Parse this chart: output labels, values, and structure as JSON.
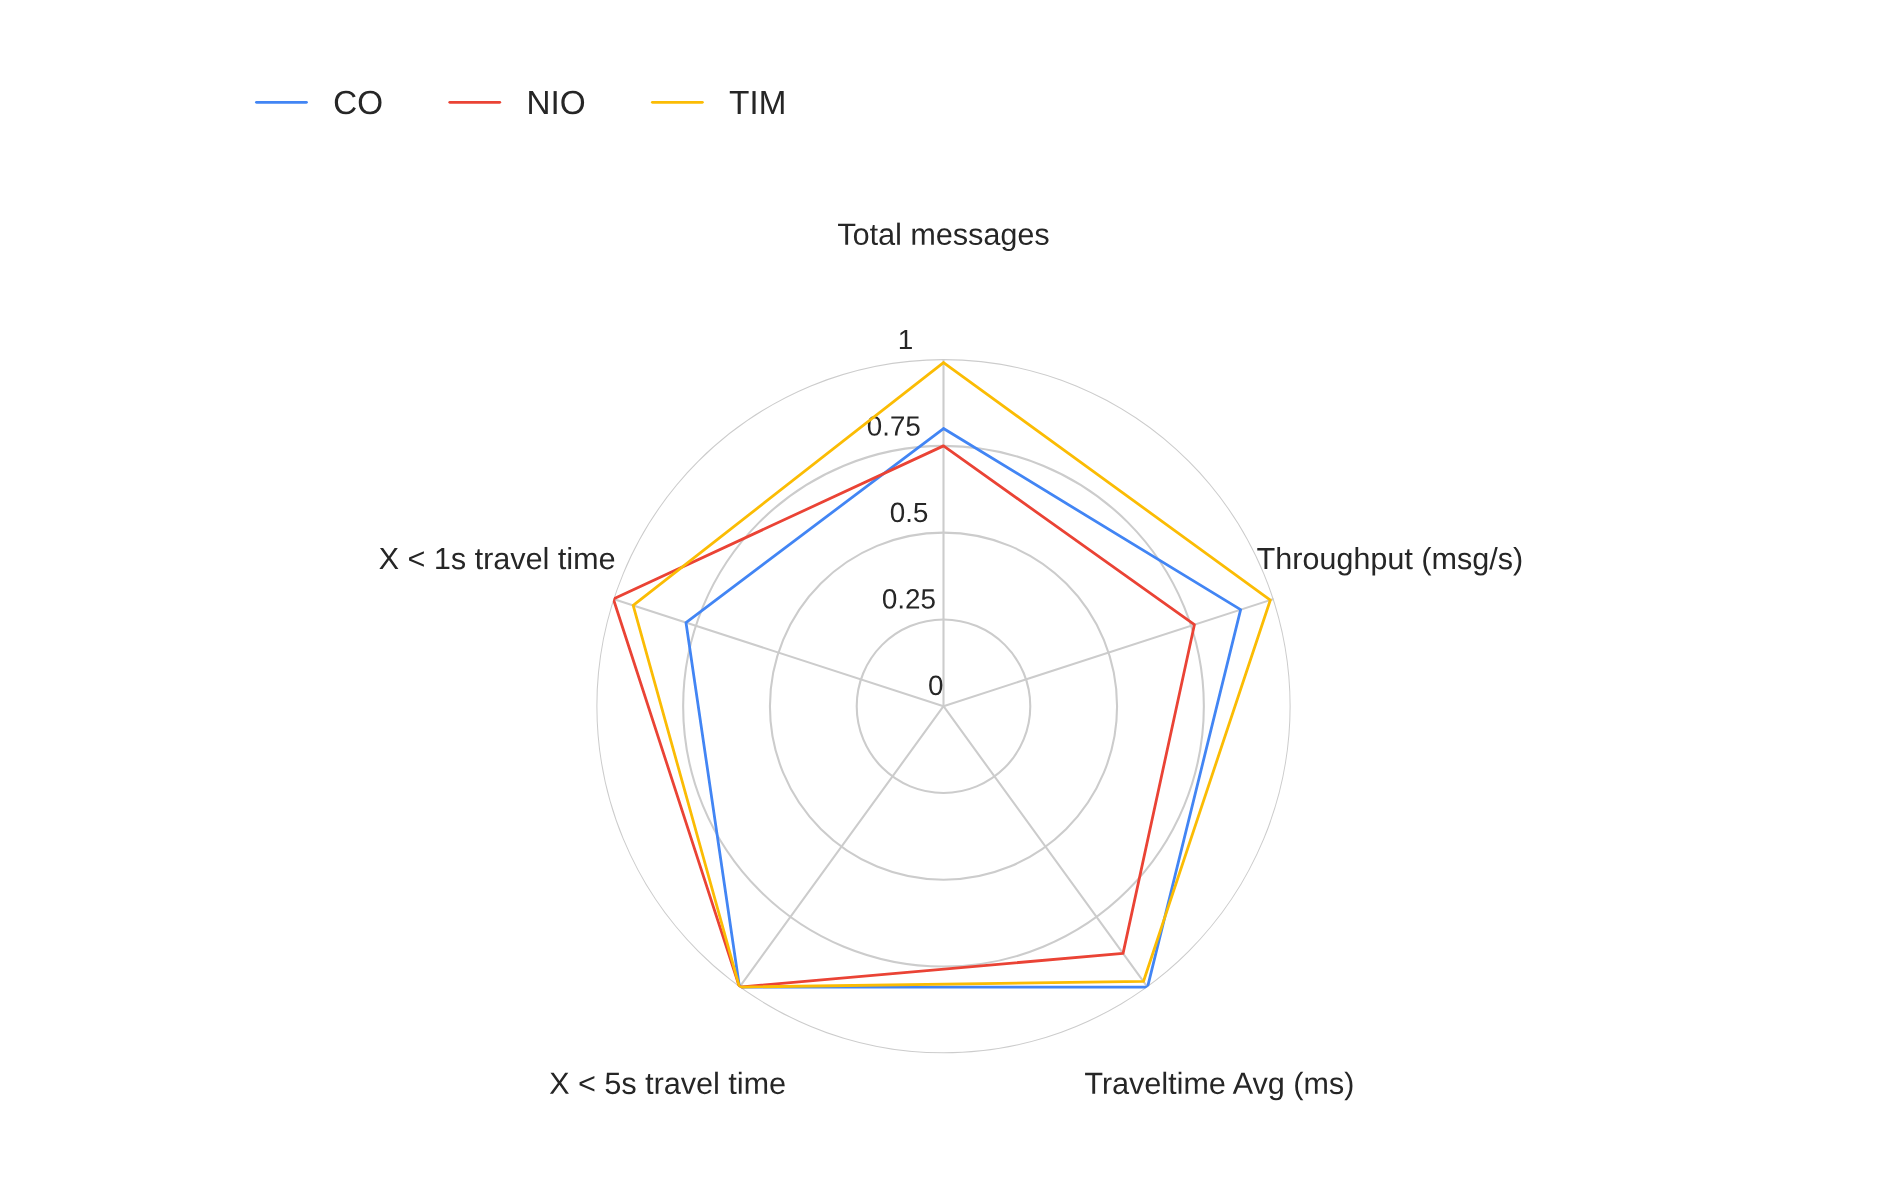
{
  "chart_data": {
    "type": "radar",
    "categories": [
      "Total messages",
      "Throughput (msg/s)",
      "Traveltime Avg (ms)",
      "X < 5s travel time",
      "X < 1s travel time"
    ],
    "series": [
      {
        "name": "CO",
        "color": "#4285f4",
        "values": [
          0.8,
          0.9,
          1.0,
          1.0,
          0.78
        ]
      },
      {
        "name": "NIO",
        "color": "#ea4335",
        "values": [
          0.75,
          0.76,
          0.88,
          1.0,
          1.0
        ]
      },
      {
        "name": "TIM",
        "color": "#fbbc04",
        "values": [
          0.99,
          0.99,
          0.98,
          1.0,
          0.94
        ]
      }
    ],
    "ylim": [
      0,
      1
    ],
    "yticks": [
      0,
      0.25,
      0.5,
      0.75,
      1
    ],
    "grid": true,
    "legend": "top left",
    "marker": "none",
    "line_style": "solid"
  }
}
